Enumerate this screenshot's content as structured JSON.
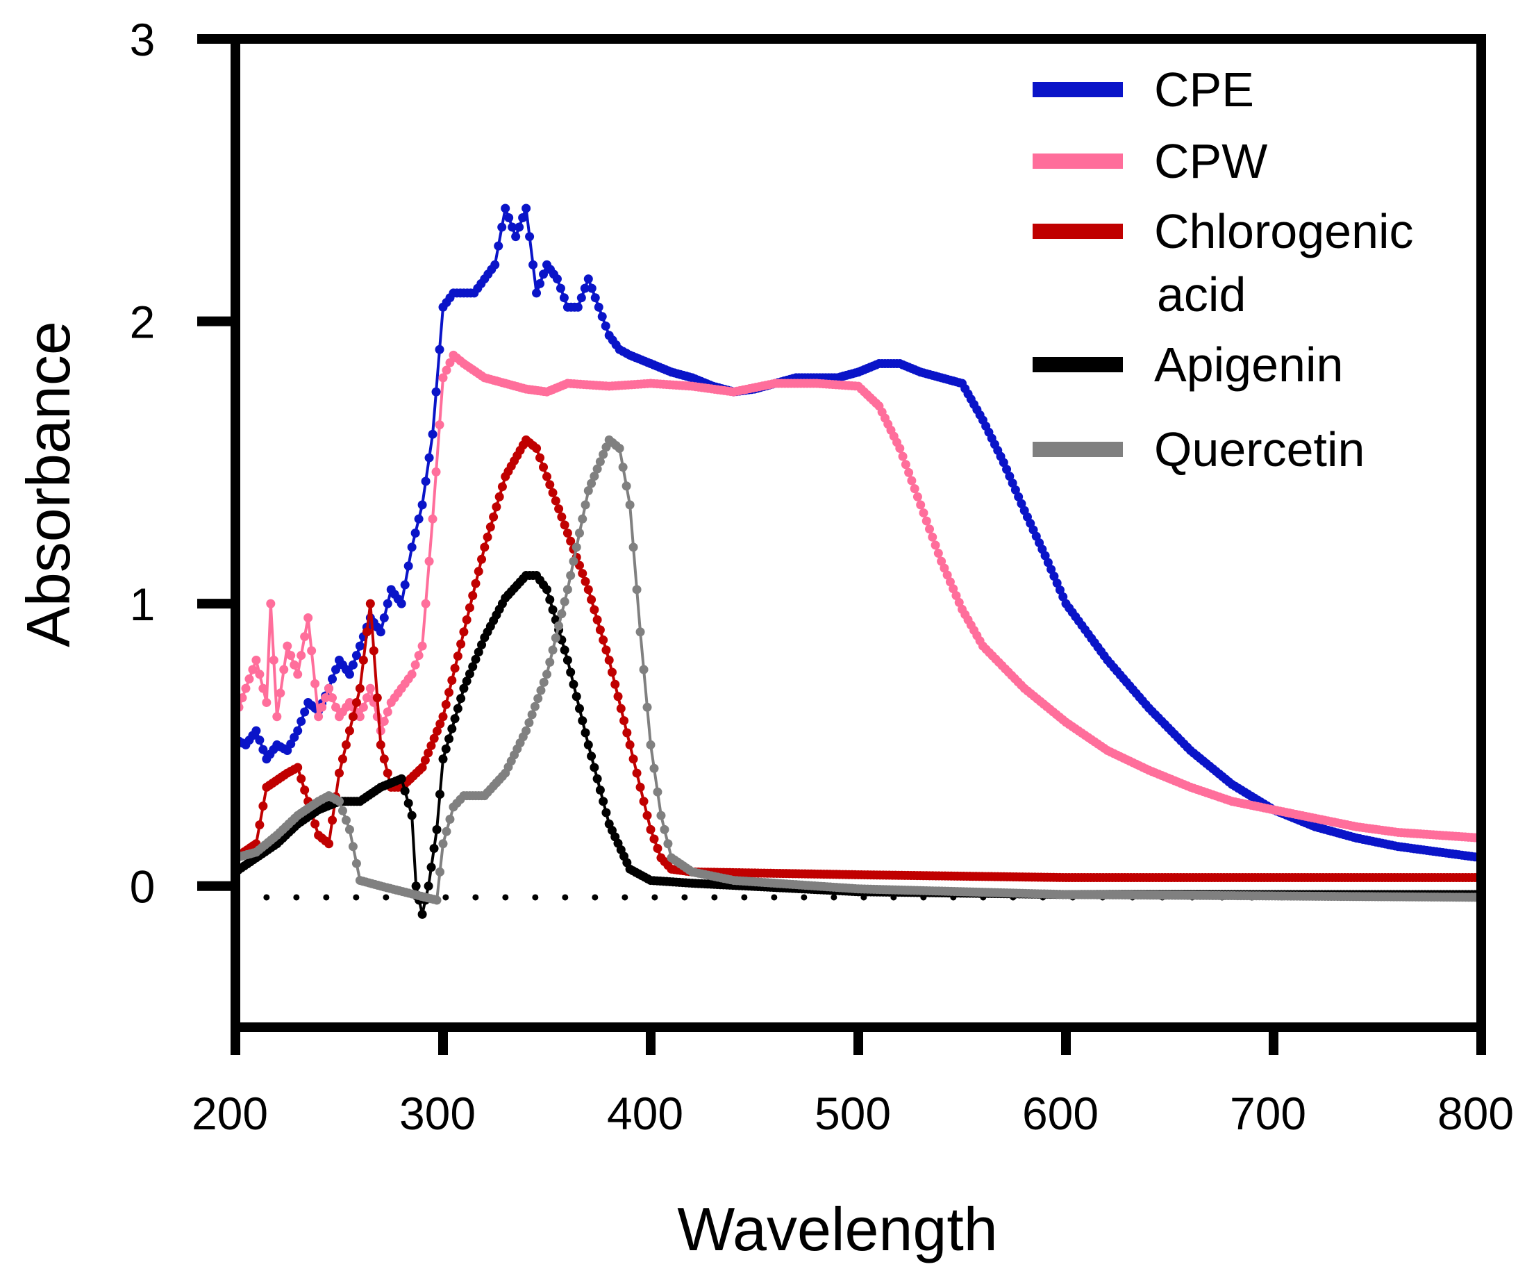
{
  "chart_data": {
    "type": "line",
    "title": "",
    "xlabel": "Wavelength",
    "ylabel": "Absorbance",
    "xlim": [
      200,
      800
    ],
    "ylim": [
      -0.5,
      3
    ],
    "xticks": [
      200,
      300,
      400,
      500,
      600,
      700,
      800
    ],
    "xtick_labels": [
      "200",
      "300",
      "400",
      "500",
      "600",
      "700",
      "800"
    ],
    "yticks": [
      0,
      1,
      2,
      3
    ],
    "ytick_labels": [
      "0",
      "1",
      "2",
      "3"
    ],
    "grid": false,
    "legend_position": "top-right",
    "baseline": {
      "style": "dotted",
      "color": "#000000",
      "x": [
        215,
        800
      ],
      "y": -0.04
    },
    "series": [
      {
        "name": "CPE",
        "color": "#0a14c8",
        "x": [
          200,
          205,
          210,
          215,
          220,
          225,
          230,
          235,
          240,
          245,
          250,
          255,
          260,
          265,
          270,
          275,
          280,
          285,
          290,
          295,
          300,
          305,
          310,
          315,
          320,
          325,
          330,
          335,
          340,
          345,
          350,
          355,
          360,
          365,
          370,
          375,
          380,
          385,
          390,
          400,
          410,
          420,
          430,
          440,
          450,
          460,
          470,
          480,
          490,
          500,
          510,
          520,
          530,
          540,
          550,
          560,
          570,
          580,
          590,
          600,
          620,
          640,
          660,
          680,
          700,
          720,
          740,
          760,
          780,
          800
        ],
        "y": [
          0.52,
          0.5,
          0.55,
          0.45,
          0.5,
          0.48,
          0.55,
          0.65,
          0.62,
          0.7,
          0.8,
          0.75,
          0.85,
          0.95,
          0.9,
          1.05,
          1.0,
          1.2,
          1.35,
          1.6,
          2.05,
          2.1,
          2.1,
          2.1,
          2.15,
          2.2,
          2.4,
          2.3,
          2.4,
          2.1,
          2.2,
          2.15,
          2.05,
          2.05,
          2.15,
          2.05,
          1.95,
          1.9,
          1.88,
          1.85,
          1.82,
          1.8,
          1.77,
          1.75,
          1.76,
          1.78,
          1.8,
          1.8,
          1.8,
          1.82,
          1.85,
          1.85,
          1.82,
          1.8,
          1.78,
          1.65,
          1.5,
          1.33,
          1.17,
          1.0,
          0.8,
          0.63,
          0.48,
          0.36,
          0.27,
          0.21,
          0.17,
          0.14,
          0.12,
          0.1
        ]
      },
      {
        "name": "CPW",
        "color": "#ff6e9b",
        "x": [
          200,
          205,
          210,
          215,
          217,
          220,
          225,
          230,
          235,
          240,
          245,
          250,
          255,
          260,
          265,
          270,
          275,
          280,
          285,
          290,
          295,
          300,
          305,
          310,
          320,
          330,
          340,
          350,
          360,
          380,
          400,
          420,
          440,
          460,
          480,
          500,
          510,
          520,
          530,
          540,
          550,
          560,
          580,
          600,
          620,
          640,
          660,
          680,
          700,
          720,
          740,
          760,
          780,
          800
        ],
        "y": [
          0.6,
          0.7,
          0.8,
          0.65,
          1.0,
          0.6,
          0.85,
          0.75,
          0.95,
          0.6,
          0.7,
          0.6,
          0.65,
          0.6,
          0.7,
          0.55,
          0.65,
          0.7,
          0.75,
          0.85,
          1.3,
          1.8,
          1.88,
          1.85,
          1.8,
          1.78,
          1.76,
          1.75,
          1.78,
          1.77,
          1.78,
          1.77,
          1.75,
          1.78,
          1.78,
          1.77,
          1.7,
          1.55,
          1.35,
          1.15,
          0.98,
          0.85,
          0.7,
          0.58,
          0.48,
          0.41,
          0.35,
          0.3,
          0.27,
          0.24,
          0.21,
          0.19,
          0.18,
          0.17
        ]
      },
      {
        "name": "Chlorogenic acid",
        "color": "#c00000",
        "x": [
          200,
          210,
          215,
          225,
          230,
          235,
          240,
          245,
          250,
          255,
          260,
          265,
          270,
          275,
          280,
          290,
          300,
          310,
          320,
          330,
          340,
          345,
          350,
          360,
          370,
          380,
          390,
          395,
          400,
          405,
          410,
          420,
          500,
          600,
          700,
          800
        ],
        "y": [
          0.1,
          0.15,
          0.35,
          0.4,
          0.42,
          0.3,
          0.18,
          0.15,
          0.4,
          0.55,
          0.7,
          1.0,
          0.5,
          0.35,
          0.35,
          0.42,
          0.6,
          0.9,
          1.2,
          1.45,
          1.58,
          1.55,
          1.45,
          1.25,
          1.05,
          0.8,
          0.5,
          0.35,
          0.2,
          0.1,
          0.06,
          0.05,
          0.04,
          0.03,
          0.03,
          0.03
        ]
      },
      {
        "name": "Apigenin",
        "color": "#000000",
        "x": [
          200,
          210,
          220,
          230,
          240,
          250,
          260,
          270,
          280,
          285,
          287,
          290,
          293,
          297,
          300,
          310,
          320,
          330,
          340,
          345,
          350,
          360,
          370,
          380,
          390,
          400,
          420,
          500,
          600,
          800
        ],
        "y": [
          0.05,
          0.1,
          0.15,
          0.22,
          0.27,
          0.3,
          0.3,
          0.35,
          0.38,
          0.25,
          0.0,
          -0.1,
          0.0,
          0.2,
          0.45,
          0.7,
          0.88,
          1.02,
          1.1,
          1.1,
          1.05,
          0.8,
          0.5,
          0.22,
          0.06,
          0.02,
          0.01,
          -0.02,
          -0.03,
          -0.03
        ]
      },
      {
        "name": "Quercetin",
        "color": "#808080",
        "x": [
          200,
          210,
          220,
          230,
          240,
          245,
          250,
          255,
          260,
          270,
          297,
          300,
          305,
          310,
          320,
          330,
          340,
          350,
          360,
          370,
          380,
          385,
          390,
          395,
          400,
          405,
          410,
          420,
          440,
          500,
          600,
          800
        ],
        "y": [
          0.1,
          0.12,
          0.18,
          0.25,
          0.3,
          0.32,
          0.3,
          0.2,
          0.02,
          0.0,
          -0.05,
          0.15,
          0.28,
          0.32,
          0.32,
          0.4,
          0.55,
          0.75,
          1.05,
          1.4,
          1.58,
          1.55,
          1.35,
          0.9,
          0.5,
          0.25,
          0.1,
          0.05,
          0.02,
          -0.01,
          -0.03,
          -0.04
        ]
      }
    ],
    "legend": [
      {
        "label": "CPE",
        "color": "#0a14c8"
      },
      {
        "label": "CPW",
        "color": "#ff6e9b"
      },
      {
        "label": "Chlorogenic",
        "label2": "acid",
        "color": "#c00000"
      },
      {
        "label": "Apigenin",
        "color": "#000000"
      },
      {
        "label": "Quercetin",
        "color": "#808080"
      }
    ]
  }
}
